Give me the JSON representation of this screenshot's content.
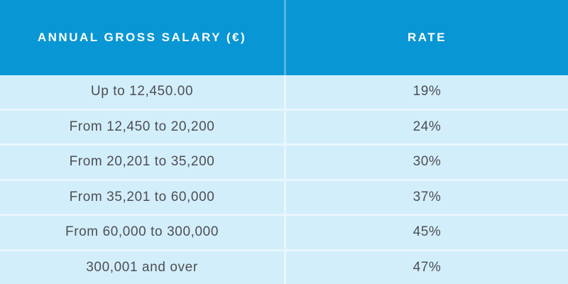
{
  "table": {
    "columns": [
      {
        "label": "ANNUAL GROSS SALARY (€)"
      },
      {
        "label": "RATE"
      }
    ],
    "rows": [
      {
        "salary": "Up to 12,450.00",
        "rate": "19%"
      },
      {
        "salary": "From 12,450 to 20,200",
        "rate": "24%"
      },
      {
        "salary": "From 20,201 to 35,200",
        "rate": "30%"
      },
      {
        "salary": "From 35,201 to 60,000",
        "rate": "37%"
      },
      {
        "salary": "From 60,000 to 300,000",
        "rate": "45%"
      },
      {
        "salary": "300,001 and over",
        "rate": "47%"
      }
    ]
  },
  "colors": {
    "header_bg": "#0996d4",
    "header_text": "#ffffff",
    "header_divider": "#53b6e1",
    "row_bg": "#d3eefb",
    "divider": "#e8f6fd",
    "body_text": "#4d4e53"
  },
  "chart_data": {
    "type": "table",
    "title": "",
    "columns": [
      "ANNUAL GROSS SALARY (€)",
      "RATE"
    ],
    "rows": [
      [
        "Up to 12,450.00",
        "19%"
      ],
      [
        "From 12,450 to 20,200",
        "24%"
      ],
      [
        "From 20,201 to 35,200",
        "30%"
      ],
      [
        "From 35,201 to 60,000",
        "37%"
      ],
      [
        "From 60,000 to 300,000",
        "45%"
      ],
      [
        "300,001 and over",
        "47%"
      ]
    ]
  }
}
